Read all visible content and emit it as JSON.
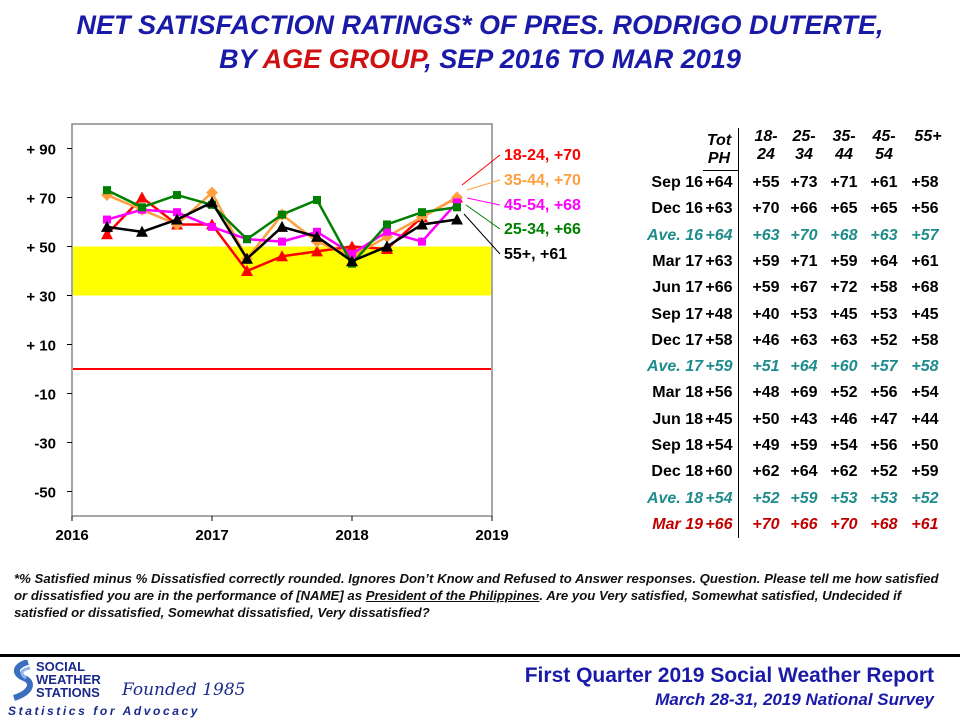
{
  "title": {
    "line1": "NET SATISFACTION RATINGS* OF PRES. RODRIGO DUTERTE,",
    "line2_pre": "BY ",
    "line2_highlight": "AGE GROUP",
    "line2_post": ", SEP 2016 TO MAR 2019"
  },
  "colors": {
    "title": "#1a1aa8",
    "highlight": "#d01010",
    "band": "#ffff00",
    "zero_line": "#ff0000",
    "average_row": "#1f8b8b",
    "latest_row": "#c00000"
  },
  "chart_data": {
    "type": "line",
    "x": [
      2016.25,
      2016.5,
      2016.75,
      2017.0,
      2017.25,
      2017.5,
      2017.75,
      2018.0,
      2018.25,
      2018.5,
      2018.75
    ],
    "x_ticks": [
      2016,
      2017,
      2018,
      2019
    ],
    "x_tick_labels": [
      "2016",
      "2017",
      "2018",
      "2019"
    ],
    "xlim": [
      2016,
      2019
    ],
    "ylim": [
      -60,
      100
    ],
    "y_ticks": [
      90,
      70,
      50,
      30,
      10,
      -10,
      -30,
      -50
    ],
    "y_tick_labels": [
      "+ 90",
      "+ 70",
      "+ 50",
      "+ 30",
      "+ 10",
      "-10",
      "-30",
      "-50"
    ],
    "band": [
      30,
      50
    ],
    "reference_line": 0,
    "grid": false,
    "series": [
      {
        "name": "18-24",
        "end_label": "18-24, +70",
        "color": "#ff0000",
        "marker": "triangle",
        "values": [
          55,
          70,
          59,
          59,
          40,
          46,
          48,
          50,
          49,
          62,
          70
        ]
      },
      {
        "name": "35-44",
        "end_label": "35-44, +70",
        "color": "#ffa040",
        "marker": "diamond",
        "values": [
          71,
          65,
          59,
          72,
          45,
          63,
          52,
          46,
          54,
          62,
          70
        ]
      },
      {
        "name": "45-54",
        "end_label": "45-54, +68",
        "color": "#ff00ff",
        "marker": "square",
        "values": [
          61,
          65,
          64,
          58,
          53,
          52,
          56,
          47,
          56,
          52,
          68
        ]
      },
      {
        "name": "25-34",
        "end_label": "25-34, +66",
        "color": "#008000",
        "marker": "square",
        "values": [
          73,
          66,
          71,
          67,
          53,
          63,
          69,
          43,
          59,
          64,
          66
        ]
      },
      {
        "name": "55+",
        "end_label": "55+, +61",
        "color": "#000000",
        "marker": "triangle",
        "values": [
          58,
          56,
          61,
          68,
          45,
          58,
          54,
          44,
          50,
          59,
          61
        ]
      }
    ]
  },
  "table": {
    "headers": {
      "totph": [
        "Tot",
        "PH"
      ],
      "ages": [
        [
          "18-",
          "24"
        ],
        [
          "25-",
          "34"
        ],
        [
          "35-",
          "44"
        ],
        [
          "45-",
          "54"
        ],
        [
          "",
          "55+"
        ]
      ]
    },
    "rows": [
      {
        "label": "Sep 16",
        "tot": "+64",
        "values": [
          "+55",
          "+73",
          "+71",
          "+61",
          "+58"
        ],
        "style": "normal"
      },
      {
        "label": "Dec 16",
        "tot": "+63",
        "values": [
          "+70",
          "+66",
          "+65",
          "+65",
          "+56"
        ],
        "style": "normal"
      },
      {
        "label": "Ave. 16",
        "tot": "+64",
        "values": [
          "+63",
          "+70",
          "+68",
          "+63",
          "+57"
        ],
        "style": "average"
      },
      {
        "label": "Mar 17",
        "tot": "+63",
        "values": [
          "+59",
          "+71",
          "+59",
          "+64",
          "+61"
        ],
        "style": "normal"
      },
      {
        "label": "Jun 17",
        "tot": "+66",
        "values": [
          "+59",
          "+67",
          "+72",
          "+58",
          "+68"
        ],
        "style": "normal"
      },
      {
        "label": "Sep 17",
        "tot": "+48",
        "values": [
          "+40",
          "+53",
          "+45",
          "+53",
          "+45"
        ],
        "style": "normal"
      },
      {
        "label": "Dec 17",
        "tot": "+58",
        "values": [
          "+46",
          "+63",
          "+63",
          "+52",
          "+58"
        ],
        "style": "normal"
      },
      {
        "label": "Ave. 17",
        "tot": "+59",
        "values": [
          "+51",
          "+64",
          "+60",
          "+57",
          "+58"
        ],
        "style": "average"
      },
      {
        "label": "Mar 18",
        "tot": "+56",
        "values": [
          "+48",
          "+69",
          "+52",
          "+56",
          "+54"
        ],
        "style": "normal"
      },
      {
        "label": "Jun 18",
        "tot": "+45",
        "values": [
          "+50",
          "+43",
          "+46",
          "+47",
          "+44"
        ],
        "style": "normal"
      },
      {
        "label": "Sep 18",
        "tot": "+54",
        "values": [
          "+49",
          "+59",
          "+54",
          "+56",
          "+50"
        ],
        "style": "normal"
      },
      {
        "label": "Dec 18",
        "tot": "+60",
        "values": [
          "+62",
          "+64",
          "+62",
          "+52",
          "+59"
        ],
        "style": "normal"
      },
      {
        "label": "Ave. 18",
        "tot": "+54",
        "values": [
          "+52",
          "+59",
          "+53",
          "+53",
          "+52"
        ],
        "style": "average"
      },
      {
        "label": "Mar 19",
        "tot": "+66",
        "values": [
          "+70",
          "+66",
          "+70",
          "+68",
          "+61"
        ],
        "style": "latest"
      }
    ]
  },
  "footnote": {
    "part1": "*% Satisfied minus % Dissatisfied correctly rounded. Ignores Don’t Know and Refused to Answer responses. Question. Please tell me how satisfied or dissatisfied you are in the performance of [NAME] as ",
    "underlined": "President of the Philippines",
    "part2": ". Are you Very satisfied, Somewhat satisfied, Undecided if satisfied or dissatisfied, Somewhat dissatisfied, Very dissatisfied?"
  },
  "logo": {
    "line1": "SOCIAL",
    "line2": "WEATHER",
    "line3": "STATIONS",
    "founded": "Founded 1985",
    "tagline": "Statistics for Advocacy"
  },
  "report": {
    "title": "First Quarter 2019 Social Weather Report",
    "subtitle": "March 28-31, 2019 National Survey"
  }
}
